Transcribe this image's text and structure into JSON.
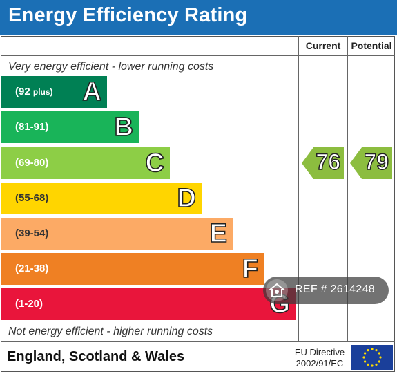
{
  "title": "Energy Efficiency Rating",
  "columns": {
    "current": "Current",
    "potential": "Potential"
  },
  "captions": {
    "top": "Very energy efficient - lower running costs",
    "bottom": "Not energy efficient - higher running costs"
  },
  "footer": {
    "country": "England, Scotland & Wales",
    "eu_line1": "EU Directive",
    "eu_line2": "2002/91/EC"
  },
  "watermark": {
    "ref": "REF # 2614248",
    "icon": "house-icon"
  },
  "chart_data": {
    "type": "bar",
    "bands": [
      {
        "letter": "A",
        "range_main": "(92",
        "range_sub": "plus)",
        "min": 92,
        "max": null,
        "color": "#008054"
      },
      {
        "letter": "B",
        "range_main": "(81-91)",
        "range_sub": "",
        "min": 81,
        "max": 91,
        "color": "#19b459"
      },
      {
        "letter": "C",
        "range_main": "(69-80)",
        "range_sub": "",
        "min": 69,
        "max": 80,
        "color": "#8dce46"
      },
      {
        "letter": "D",
        "range_main": "(55-68)",
        "range_sub": "",
        "min": 55,
        "max": 68,
        "color": "#ffd500"
      },
      {
        "letter": "E",
        "range_main": "(39-54)",
        "range_sub": "",
        "min": 39,
        "max": 54,
        "color": "#fcaa65"
      },
      {
        "letter": "F",
        "range_main": "(21-38)",
        "range_sub": "",
        "min": 21,
        "max": 38,
        "color": "#ef8023"
      },
      {
        "letter": "G",
        "range_main": "(1-20)",
        "range_sub": "",
        "min": 1,
        "max": 20,
        "color": "#e9153b"
      }
    ],
    "current": {
      "value": 76,
      "band": "C",
      "label": "76"
    },
    "potential": {
      "value": 79,
      "band": "C",
      "label": "79"
    },
    "arrow_color": "#8cbd3f"
  }
}
